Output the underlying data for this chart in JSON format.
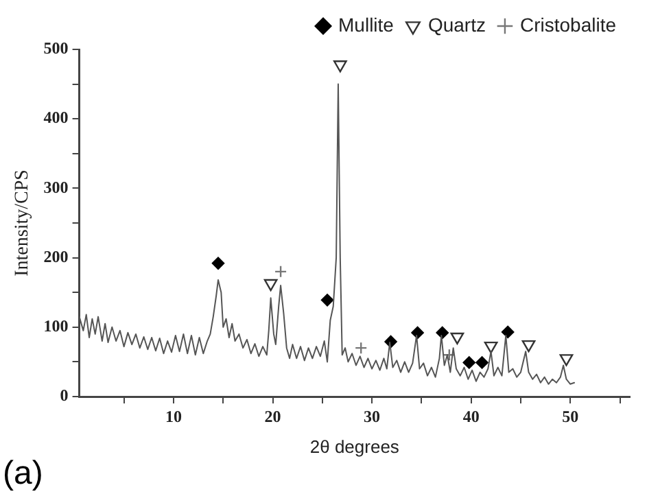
{
  "chart_data": {
    "type": "line",
    "xlabel": "2θ degrees",
    "ylabel": "Intensity/CPS",
    "xlim": [
      0.5,
      56
    ],
    "ylim": [
      0,
      500
    ],
    "xticks": [
      {
        "value": 5,
        "label": null
      },
      10,
      {
        "value": 15,
        "label": null
      },
      20,
      {
        "value": 25,
        "label": null
      },
      30,
      {
        "value": 35,
        "label": null
      },
      40,
      {
        "value": 45,
        "label": null
      },
      50,
      {
        "value": 55,
        "label": null
      }
    ],
    "yticks": [
      0,
      {
        "value": 50,
        "label": null
      },
      100,
      {
        "value": 150,
        "label": null
      },
      200,
      {
        "value": 250,
        "label": null
      },
      300,
      {
        "value": 350,
        "label": null
      },
      400,
      {
        "value": 450,
        "label": null
      },
      500
    ],
    "grid": false,
    "legend": "top right",
    "annotations": [
      "(a)"
    ],
    "series": [
      {
        "type": "line",
        "color": "#555555",
        "marker": "none",
        "x": [
          0.5,
          0.9,
          1.2,
          1.5,
          1.8,
          2.1,
          2.4,
          2.8,
          3.1,
          3.4,
          3.8,
          4.2,
          4.6,
          5.0,
          5.4,
          5.8,
          6.2,
          6.6,
          7.0,
          7.4,
          7.8,
          8.2,
          8.6,
          9.0,
          9.4,
          9.8,
          10.2,
          10.6,
          11.0,
          11.4,
          11.8,
          12.2,
          12.6,
          13.0,
          13.4,
          13.7,
          14.0,
          14.3,
          14.5,
          14.8,
          15.0,
          15.3,
          15.6,
          15.9,
          16.2,
          16.6,
          17.0,
          17.4,
          17.8,
          18.2,
          18.6,
          19.0,
          19.4,
          19.6,
          19.8,
          20.1,
          20.3,
          20.6,
          20.8,
          21.1,
          21.4,
          21.7,
          22.0,
          22.4,
          22.8,
          23.2,
          23.6,
          24.0,
          24.4,
          24.8,
          25.2,
          25.5,
          25.8,
          26.1,
          26.4,
          26.6,
          26.8,
          27.0,
          27.3,
          27.6,
          28.0,
          28.4,
          28.8,
          29.2,
          29.6,
          30.0,
          30.4,
          30.8,
          31.2,
          31.5,
          31.8,
          32.1,
          32.5,
          32.9,
          33.3,
          33.7,
          34.1,
          34.5,
          34.8,
          35.2,
          35.6,
          36.0,
          36.4,
          36.8,
          37.0,
          37.3,
          37.6,
          37.9,
          38.2,
          38.5,
          38.9,
          39.3,
          39.7,
          40.1,
          40.5,
          40.9,
          41.3,
          41.7,
          42.0,
          42.3,
          42.7,
          43.1,
          43.5,
          43.8,
          44.2,
          44.6,
          45.0,
          45.5,
          45.8,
          46.2,
          46.6,
          47.0,
          47.4,
          47.8,
          48.2,
          48.6,
          49.0,
          49.3,
          49.6,
          50.0,
          50.4
        ],
        "values": [
          115,
          95,
          118,
          85,
          112,
          90,
          115,
          80,
          105,
          78,
          100,
          80,
          95,
          72,
          92,
          75,
          90,
          70,
          86,
          68,
          85,
          66,
          84,
          62,
          80,
          64,
          88,
          65,
          90,
          62,
          88,
          60,
          85,
          62,
          80,
          90,
          115,
          145,
          168,
          150,
          100,
          112,
          85,
          105,
          80,
          90,
          70,
          82,
          62,
          76,
          58,
          72,
          60,
          95,
          142,
          90,
          75,
          130,
          160,
          120,
          70,
          55,
          75,
          55,
          72,
          52,
          70,
          55,
          72,
          58,
          80,
          50,
          110,
          130,
          200,
          450,
          200,
          60,
          70,
          50,
          62,
          45,
          58,
          42,
          55,
          40,
          52,
          38,
          55,
          40,
          78,
          42,
          52,
          35,
          50,
          35,
          48,
          88,
          40,
          48,
          30,
          42,
          28,
          55,
          88,
          45,
          60,
          35,
          70,
          40,
          30,
          42,
          25,
          38,
          22,
          35,
          28,
          40,
          65,
          30,
          42,
          30,
          88,
          35,
          40,
          28,
          35,
          65,
          35,
          25,
          32,
          20,
          28,
          18,
          25,
          20,
          28,
          45,
          25,
          18,
          20
        ]
      },
      {
        "type": "scatter",
        "name": "Mullite",
        "color": "#000000",
        "marker": "diamond",
        "x": [
          14.5,
          25.5,
          31.9,
          34.6,
          37.1,
          39.8,
          41.1,
          43.7
        ],
        "values": [
          192,
          139,
          79,
          92,
          92,
          49,
          49,
          93
        ]
      },
      {
        "type": "scatter",
        "name": "Quartz",
        "color": "#333333",
        "marker": "triangle",
        "x": [
          19.8,
          26.8,
          38.6,
          42.0,
          45.8,
          49.6
        ],
        "values": [
          163,
          478,
          86,
          73,
          75,
          55
        ]
      },
      {
        "type": "scatter",
        "name": "Cristobalite",
        "color": "#777777",
        "marker": "cross",
        "x": [
          20.8,
          28.9,
          37.8
        ],
        "values": [
          180,
          70,
          60
        ]
      }
    ]
  }
}
